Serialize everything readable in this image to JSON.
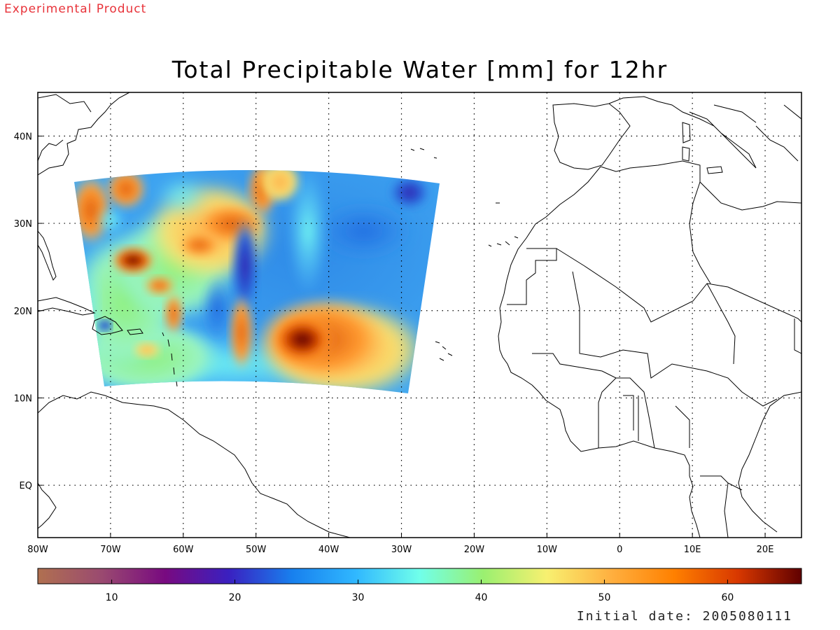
{
  "header": {
    "product_tag": "Experimental Product",
    "title": "Total Precipitable Water [mm] for 12hr"
  },
  "map": {
    "lon_range": [
      -80,
      25
    ],
    "lat_range": [
      -6,
      45
    ],
    "lon_ticks": [
      {
        "value": -80,
        "label": "80W"
      },
      {
        "value": -70,
        "label": "70W"
      },
      {
        "value": -60,
        "label": "60W"
      },
      {
        "value": -50,
        "label": "50W"
      },
      {
        "value": -40,
        "label": "40W"
      },
      {
        "value": -30,
        "label": "30W"
      },
      {
        "value": -20,
        "label": "20W"
      },
      {
        "value": -10,
        "label": "10W"
      },
      {
        "value": 0,
        "label": "0"
      },
      {
        "value": 10,
        "label": "10E"
      },
      {
        "value": 20,
        "label": "20E"
      }
    ],
    "lat_ticks": [
      {
        "value": 40,
        "label": "40N"
      },
      {
        "value": 30,
        "label": "30N"
      },
      {
        "value": 20,
        "label": "20N"
      },
      {
        "value": 10,
        "label": "10N"
      },
      {
        "value": 0,
        "label": "EQ"
      }
    ],
    "gridlines": "dotted",
    "data_domain": {
      "lon_range": [
        -75,
        -25
      ],
      "lat_range": [
        11,
        37
      ]
    }
  },
  "colorbar": {
    "range": [
      4,
      66
    ],
    "ticks": [
      {
        "value": 10,
        "label": "10"
      },
      {
        "value": 20,
        "label": "20"
      },
      {
        "value": 30,
        "label": "30"
      },
      {
        "value": 40,
        "label": "40"
      },
      {
        "value": 50,
        "label": "50"
      },
      {
        "value": 60,
        "label": "60"
      }
    ],
    "colors": [
      "#b07050",
      "#9a4a70",
      "#780a80",
      "#3a20c0",
      "#1880ee",
      "#30b8ff",
      "#70ffea",
      "#9af070",
      "#f8f070",
      "#ffb040",
      "#ff8000",
      "#d83800",
      "#600000"
    ]
  },
  "footer": {
    "initial_date": "Initial date: 2005080111"
  }
}
